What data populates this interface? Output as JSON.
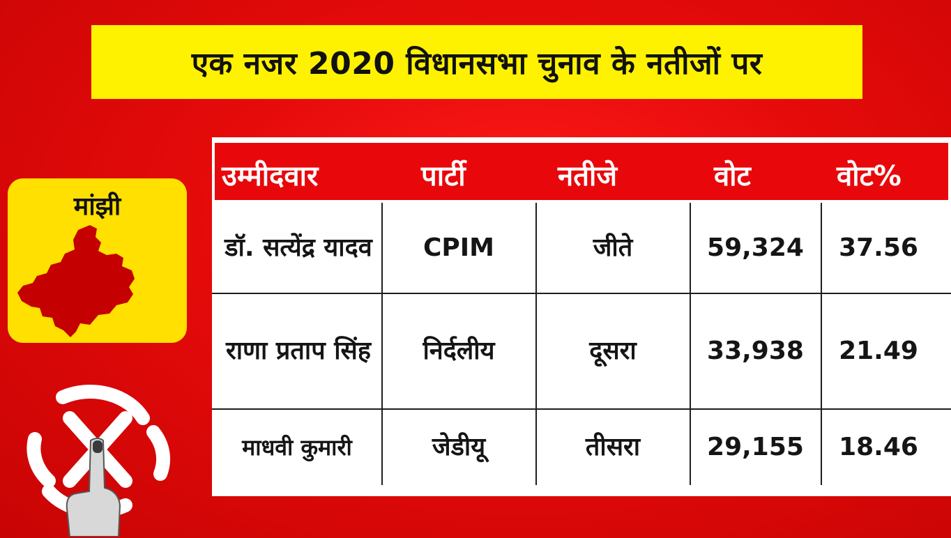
{
  "title": "एक नजर 2020 विधानसभा चुनाव के नतीजों पर",
  "constituency": {
    "name": "मांझी",
    "map_icon": "constituency-map-icon"
  },
  "logo_icon": "election-commission-swastik-logo",
  "table": {
    "headers": [
      "उम्मीदवार",
      "पार्टी",
      "नतीजे",
      "वोट",
      "वोट%"
    ],
    "rows": [
      {
        "candidate": "डॉ. सत्येंद्र यादव",
        "party": "CPIM",
        "result": "जीते",
        "votes": "59,324",
        "vote_pct": "37.56"
      },
      {
        "candidate": "राणा प्रताप सिंह",
        "party": "निर्दलीय",
        "result": "दूसरा",
        "votes": "33,938",
        "vote_pct": "21.49"
      },
      {
        "candidate": "माधवी कुमारी",
        "party": "जेडीयू",
        "result": "तीसरा",
        "votes": "29,155",
        "vote_pct": "18.46"
      }
    ]
  },
  "colors": {
    "background": "#e40a0a",
    "title_bg": "#fff200",
    "card_bg": "#ffe000",
    "header_bg": "#e8080c",
    "map": "#c40000"
  }
}
